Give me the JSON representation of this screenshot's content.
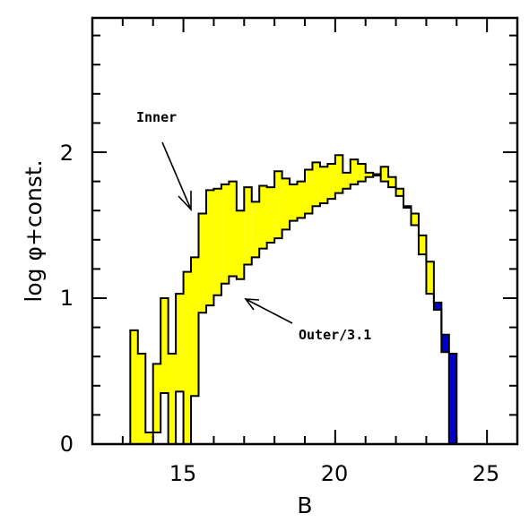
{
  "chart_data": {
    "type": "histogram",
    "xlabel": "B",
    "ylabel": "log φ+const.",
    "xlim": [
      12,
      26
    ],
    "ylim": [
      0,
      2.9
    ],
    "xticks": [
      "15",
      "20",
      "25"
    ],
    "yticks": [
      "0",
      "1",
      "2"
    ],
    "annotations": {
      "inner": "Inner",
      "outer": "Outer/3.1"
    },
    "colors": {
      "inner_excess": "#ffff00",
      "outer_excess": "#0000cc"
    },
    "bin_width": 0.25,
    "series": [
      {
        "name": "Inner",
        "bins": [
          [
            13.25,
            0.78
          ],
          [
            13.5,
            0.62
          ],
          [
            13.75,
            0.08
          ],
          [
            14.0,
            0.55
          ],
          [
            14.25,
            1.0
          ],
          [
            14.5,
            0.62
          ],
          [
            14.75,
            1.03
          ],
          [
            15.0,
            1.18
          ],
          [
            15.25,
            1.28
          ],
          [
            15.5,
            1.58
          ],
          [
            15.75,
            1.74
          ],
          [
            16.0,
            1.75
          ],
          [
            16.25,
            1.78
          ],
          [
            16.5,
            1.8
          ],
          [
            16.75,
            1.6
          ],
          [
            17.0,
            1.76
          ],
          [
            17.25,
            1.66
          ],
          [
            17.5,
            1.77
          ],
          [
            17.75,
            1.76
          ],
          [
            18.0,
            1.87
          ],
          [
            18.25,
            1.82
          ],
          [
            18.5,
            1.78
          ],
          [
            18.75,
            1.8
          ],
          [
            19.0,
            1.88
          ],
          [
            19.25,
            1.93
          ],
          [
            19.5,
            1.9
          ],
          [
            19.75,
            1.92
          ],
          [
            20.0,
            1.98
          ],
          [
            20.25,
            1.86
          ],
          [
            20.5,
            1.95
          ],
          [
            20.75,
            1.92
          ],
          [
            21.0,
            1.86
          ],
          [
            21.25,
            1.84
          ],
          [
            21.5,
            1.9
          ],
          [
            21.75,
            1.83
          ],
          [
            22.0,
            1.75
          ],
          [
            22.25,
            1.63
          ],
          [
            22.5,
            1.58
          ],
          [
            22.75,
            1.43
          ],
          [
            23.0,
            1.25
          ],
          [
            23.25,
            0.92
          ],
          [
            23.5,
            0.63
          ]
        ]
      },
      {
        "name": "Outer/3.1",
        "bins": [
          [
            13.75,
            0.0
          ],
          [
            14.0,
            0.08
          ],
          [
            14.25,
            0.35
          ],
          [
            14.5,
            0.0
          ],
          [
            14.75,
            0.36
          ],
          [
            15.0,
            0.0
          ],
          [
            15.25,
            0.33
          ],
          [
            15.5,
            0.9
          ],
          [
            15.75,
            0.95
          ],
          [
            16.0,
            1.02
          ],
          [
            16.25,
            1.1
          ],
          [
            16.5,
            1.15
          ],
          [
            16.75,
            1.13
          ],
          [
            17.0,
            1.23
          ],
          [
            17.25,
            1.28
          ],
          [
            17.5,
            1.34
          ],
          [
            17.75,
            1.38
          ],
          [
            18.0,
            1.41
          ],
          [
            18.25,
            1.47
          ],
          [
            18.5,
            1.53
          ],
          [
            18.75,
            1.55
          ],
          [
            19.0,
            1.58
          ],
          [
            19.25,
            1.63
          ],
          [
            19.5,
            1.65
          ],
          [
            19.75,
            1.68
          ],
          [
            20.0,
            1.72
          ],
          [
            20.25,
            1.75
          ],
          [
            20.5,
            1.78
          ],
          [
            20.75,
            1.8
          ],
          [
            21.0,
            1.83
          ],
          [
            21.25,
            1.85
          ],
          [
            21.5,
            1.8
          ],
          [
            21.75,
            1.76
          ],
          [
            22.0,
            1.7
          ],
          [
            22.25,
            1.62
          ],
          [
            22.5,
            1.5
          ],
          [
            22.75,
            1.3
          ],
          [
            23.0,
            1.03
          ],
          [
            23.25,
            0.97
          ],
          [
            23.5,
            0.75
          ],
          [
            23.75,
            0.62
          ]
        ]
      }
    ]
  }
}
